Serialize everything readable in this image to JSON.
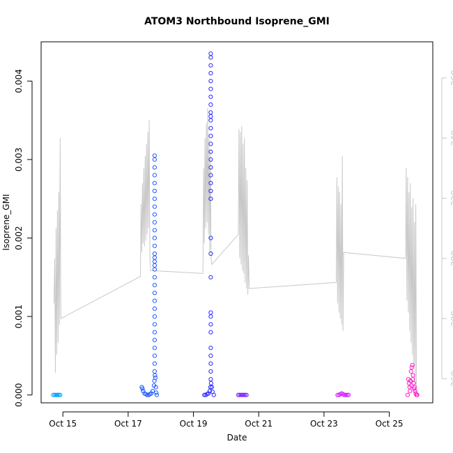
{
  "chart_data": {
    "type": "scatter",
    "title": "ATOM3 Northbound Isoprene_GMI",
    "xlabel": "Date",
    "ylabel": "Isoprene_GMI",
    "xlim": [
      "2017-10-14T08:00",
      "2017-10-26T08:00"
    ],
    "ylim": [
      -0.0001,
      0.0045
    ],
    "y2lim": [
      252,
      372
    ],
    "x_ticks": [
      {
        "date": "2017-10-15",
        "label": "Oct 15"
      },
      {
        "date": "2017-10-17",
        "label": "Oct 17"
      },
      {
        "date": "2017-10-19",
        "label": "Oct 19"
      },
      {
        "date": "2017-10-21",
        "label": "Oct 21"
      },
      {
        "date": "2017-10-23",
        "label": "Oct 23"
      },
      {
        "date": "2017-10-25",
        "label": "Oct 25"
      }
    ],
    "y_ticks": [
      {
        "value": 0,
        "label": "0.000"
      },
      {
        "value": 0.001,
        "label": "0.001"
      },
      {
        "value": 0.002,
        "label": "0.002"
      },
      {
        "value": 0.003,
        "label": "0.003"
      },
      {
        "value": 0.004,
        "label": "0.004"
      }
    ],
    "y2_ticks": [
      {
        "value": 260,
        "label": "260"
      },
      {
        "value": 280,
        "label": "280"
      },
      {
        "value": 300,
        "label": "300"
      },
      {
        "value": 320,
        "label": "320"
      },
      {
        "value": 340,
        "label": "340"
      },
      {
        "value": 360,
        "label": "360"
      }
    ],
    "grid": false,
    "legend": "none",
    "series": [
      {
        "color": "#00A0FF",
        "points": [
          [
            "2017-10-14T17:00",
            0
          ],
          [
            "2017-10-14T18:00",
            0
          ],
          [
            "2017-10-14T19:00",
            0
          ],
          [
            "2017-10-14T20:00",
            0
          ],
          [
            "2017-10-14T21:00",
            0
          ],
          [
            "2017-10-14T22:00",
            0
          ]
        ]
      },
      {
        "color": "#1E5AFF",
        "points": [
          [
            "2017-10-17T10:00",
            0.0001
          ],
          [
            "2017-10-17T10:30",
            8e-05
          ],
          [
            "2017-10-17T11:00",
            5e-05
          ],
          [
            "2017-10-17T12:00",
            2e-05
          ],
          [
            "2017-10-17T13:00",
            1e-05
          ],
          [
            "2017-10-17T14:00",
            0
          ],
          [
            "2017-10-17T15:00",
            0
          ],
          [
            "2017-10-17T16:00",
            1e-05
          ],
          [
            "2017-10-17T17:00",
            2e-05
          ],
          [
            "2017-10-17T18:00",
            5e-05
          ],
          [
            "2017-10-17T19:00",
            0.00012
          ],
          [
            "2017-10-17T19:20",
            0.00018
          ],
          [
            "2017-10-17T19:40",
            0.00025
          ],
          [
            "2017-10-17T20:00",
            0.00022
          ],
          [
            "2017-10-17T20:20",
            0.0001
          ],
          [
            "2017-10-17T20:40",
            3e-05
          ],
          [
            "2017-10-17T21:00",
            0
          ],
          [
            "2017-10-17T19:30",
            0.0003
          ],
          [
            "2017-10-17T19:30",
            0.0004
          ],
          [
            "2017-10-17T19:30",
            0.0005
          ],
          [
            "2017-10-17T19:30",
            0.0006
          ],
          [
            "2017-10-17T19:30",
            0.0007
          ],
          [
            "2017-10-17T19:30",
            0.0008
          ],
          [
            "2017-10-17T19:30",
            0.0009
          ],
          [
            "2017-10-17T19:30",
            0.001
          ],
          [
            "2017-10-17T19:30",
            0.0011
          ],
          [
            "2017-10-17T19:30",
            0.0012
          ],
          [
            "2017-10-17T19:30",
            0.0013
          ],
          [
            "2017-10-17T19:30",
            0.0014
          ],
          [
            "2017-10-17T19:30",
            0.0015
          ],
          [
            "2017-10-17T19:30",
            0.0016
          ],
          [
            "2017-10-17T19:30",
            0.00165
          ],
          [
            "2017-10-17T19:30",
            0.0017
          ],
          [
            "2017-10-17T19:30",
            0.00175
          ],
          [
            "2017-10-17T19:30",
            0.0018
          ],
          [
            "2017-10-17T19:30",
            0.0019
          ],
          [
            "2017-10-17T19:30",
            0.002
          ],
          [
            "2017-10-17T19:30",
            0.0021
          ],
          [
            "2017-10-17T19:30",
            0.0022
          ],
          [
            "2017-10-17T19:30",
            0.0023
          ],
          [
            "2017-10-17T19:30",
            0.0024
          ],
          [
            "2017-10-17T19:30",
            0.0025
          ],
          [
            "2017-10-17T19:30",
            0.0026
          ],
          [
            "2017-10-17T19:30",
            0.0027
          ],
          [
            "2017-10-17T19:30",
            0.0028
          ],
          [
            "2017-10-17T19:30",
            0.0029
          ],
          [
            "2017-10-17T19:30",
            0.003
          ],
          [
            "2017-10-17T19:30",
            0.00305
          ]
        ]
      },
      {
        "color": "#2A2AFF",
        "points": [
          [
            "2017-10-19T08:00",
            0
          ],
          [
            "2017-10-19T09:00",
            0
          ],
          [
            "2017-10-19T10:00",
            1e-05
          ],
          [
            "2017-10-19T11:00",
            2e-05
          ],
          [
            "2017-10-19T12:00",
            5e-05
          ],
          [
            "2017-10-19T12:30",
            0.0001
          ],
          [
            "2017-10-19T13:00",
            0.00015
          ],
          [
            "2017-10-19T13:30",
            0.0001
          ],
          [
            "2017-10-19T14:00",
            4e-05
          ],
          [
            "2017-10-19T15:00",
            0
          ],
          [
            "2017-10-19T12:45",
            0.0002
          ],
          [
            "2017-10-19T12:45",
            0.0003
          ],
          [
            "2017-10-19T12:45",
            0.0004
          ],
          [
            "2017-10-19T12:45",
            0.0005
          ],
          [
            "2017-10-19T12:45",
            0.0006
          ],
          [
            "2017-10-19T12:45",
            0.0008
          ],
          [
            "2017-10-19T12:45",
            0.0009
          ],
          [
            "2017-10-19T12:45",
            0.001
          ],
          [
            "2017-10-19T12:45",
            0.00105
          ],
          [
            "2017-10-19T12:45",
            0.0015
          ],
          [
            "2017-10-19T12:45",
            0.0018
          ],
          [
            "2017-10-19T12:45",
            0.002
          ],
          [
            "2017-10-19T12:45",
            0.0025
          ],
          [
            "2017-10-19T12:45",
            0.0026
          ],
          [
            "2017-10-19T12:45",
            0.0027
          ],
          [
            "2017-10-19T12:45",
            0.0028
          ],
          [
            "2017-10-19T12:45",
            0.0029
          ],
          [
            "2017-10-19T12:45",
            0.003
          ],
          [
            "2017-10-19T12:45",
            0.0031
          ],
          [
            "2017-10-19T12:45",
            0.0032
          ],
          [
            "2017-10-19T12:45",
            0.0033
          ],
          [
            "2017-10-19T12:45",
            0.0034
          ],
          [
            "2017-10-19T12:45",
            0.0035
          ],
          [
            "2017-10-19T12:45",
            0.00355
          ],
          [
            "2017-10-19T12:45",
            0.0036
          ],
          [
            "2017-10-19T12:45",
            0.0037
          ],
          [
            "2017-10-19T12:45",
            0.0038
          ],
          [
            "2017-10-19T12:45",
            0.0039
          ],
          [
            "2017-10-19T12:45",
            0.004
          ],
          [
            "2017-10-19T12:45",
            0.0041
          ],
          [
            "2017-10-19T12:45",
            0.0042
          ],
          [
            "2017-10-19T12:45",
            0.0043
          ],
          [
            "2017-10-19T12:45",
            0.00435
          ]
        ]
      },
      {
        "color": "#7A1EFF",
        "points": [
          [
            "2017-10-20T09:00",
            0
          ],
          [
            "2017-10-20T10:00",
            0
          ],
          [
            "2017-10-20T11:00",
            0
          ],
          [
            "2017-10-20T12:00",
            0
          ],
          [
            "2017-10-20T13:00",
            0
          ],
          [
            "2017-10-20T14:00",
            0
          ],
          [
            "2017-10-20T15:00",
            0
          ]
        ]
      },
      {
        "color": "#D21EFF",
        "points": [
          [
            "2017-10-23T10:00",
            0
          ],
          [
            "2017-10-23T11:00",
            0
          ],
          [
            "2017-10-23T12:00",
            1e-05
          ],
          [
            "2017-10-23T13:00",
            2e-05
          ],
          [
            "2017-10-23T14:00",
            1e-05
          ],
          [
            "2017-10-23T15:00",
            0
          ],
          [
            "2017-10-23T16:00",
            0
          ],
          [
            "2017-10-23T17:00",
            0
          ],
          [
            "2017-10-23T18:00",
            0
          ]
        ]
      },
      {
        "color": "#FF1EC8",
        "points": [
          [
            "2017-10-25T14:00",
            0.0002
          ],
          [
            "2017-10-25T14:30",
            0.00015
          ],
          [
            "2017-10-25T15:00",
            0.0001
          ],
          [
            "2017-10-25T15:30",
            0.00018
          ],
          [
            "2017-10-25T16:00",
            0.0003
          ],
          [
            "2017-10-25T16:30",
            0.00035
          ],
          [
            "2017-10-25T17:00",
            0.00038
          ],
          [
            "2017-10-25T17:30",
            0.00025
          ],
          [
            "2017-10-25T18:00",
            0.00015
          ],
          [
            "2017-10-25T18:30",
            0.0001
          ],
          [
            "2017-10-25T19:00",
            5e-05
          ],
          [
            "2017-10-25T19:30",
            2e-05
          ],
          [
            "2017-10-25T20:00",
            0
          ],
          [
            "2017-10-25T20:30",
            0
          ],
          [
            "2017-10-25T13:30",
            0
          ],
          [
            "2017-10-25T15:15",
            5e-05
          ],
          [
            "2017-10-25T16:15",
            0.00012
          ],
          [
            "2017-10-25T17:15",
            0.0002
          ],
          [
            "2017-10-25T18:15",
            8e-05
          ]
        ]
      }
    ],
    "line_series": {
      "axis": "right",
      "color": "#c8c8c8",
      "points": [
        [
          "2017-10-14T17:30",
          285
        ],
        [
          "2017-10-14T18:00",
          300
        ],
        [
          "2017-10-14T18:30",
          262
        ],
        [
          "2017-10-14T19:00",
          310
        ],
        [
          "2017-10-14T19:30",
          268
        ],
        [
          "2017-10-14T20:00",
          316
        ],
        [
          "2017-10-14T20:30",
          272
        ],
        [
          "2017-10-14T21:00",
          322
        ],
        [
          "2017-10-14T21:30",
          278
        ],
        [
          "2017-10-14T22:00",
          340
        ],
        [
          "2017-10-14T22:30",
          280
        ],
        [
          "2017-10-17T09:00",
          294
        ],
        [
          "2017-10-17T09:30",
          318
        ],
        [
          "2017-10-17T10:00",
          302
        ],
        [
          "2017-10-17T10:30",
          325
        ],
        [
          "2017-10-17T11:00",
          305
        ],
        [
          "2017-10-17T11:30",
          330
        ],
        [
          "2017-10-17T12:00",
          304
        ],
        [
          "2017-10-17T12:30",
          334
        ],
        [
          "2017-10-17T13:00",
          306
        ],
        [
          "2017-10-17T13:30",
          338
        ],
        [
          "2017-10-17T14:00",
          308
        ],
        [
          "2017-10-17T14:30",
          342
        ],
        [
          "2017-10-17T15:00",
          310
        ],
        [
          "2017-10-17T15:30",
          346
        ],
        [
          "2017-10-17T16:00",
          300
        ],
        [
          "2017-10-17T16:30",
          296
        ],
        [
          "2017-10-19T07:00",
          295
        ],
        [
          "2017-10-19T07:30",
          330
        ],
        [
          "2017-10-19T08:00",
          305
        ],
        [
          "2017-10-19T08:30",
          340
        ],
        [
          "2017-10-19T09:00",
          310
        ],
        [
          "2017-10-19T09:30",
          345
        ],
        [
          "2017-10-19T10:00",
          312
        ],
        [
          "2017-10-19T10:30",
          350
        ],
        [
          "2017-10-19T11:00",
          308
        ],
        [
          "2017-10-19T11:30",
          340
        ],
        [
          "2017-10-19T12:00",
          302
        ],
        [
          "2017-10-19T12:30",
          336
        ],
        [
          "2017-10-19T13:00",
          300
        ],
        [
          "2017-10-19T13:30",
          298
        ],
        [
          "2017-10-20T09:00",
          308
        ],
        [
          "2017-10-20T09:30",
          343
        ],
        [
          "2017-10-20T10:00",
          300
        ],
        [
          "2017-10-20T10:30",
          342
        ],
        [
          "2017-10-20T11:00",
          298
        ],
        [
          "2017-10-20T11:30",
          344
        ],
        [
          "2017-10-20T12:00",
          296
        ],
        [
          "2017-10-20T12:30",
          338
        ],
        [
          "2017-10-20T13:00",
          295
        ],
        [
          "2017-10-20T13:30",
          340
        ],
        [
          "2017-10-20T14:00",
          292
        ],
        [
          "2017-10-20T14:30",
          330
        ],
        [
          "2017-10-20T15:00",
          290
        ],
        [
          "2017-10-20T15:30",
          326
        ],
        [
          "2017-10-20T16:00",
          288
        ],
        [
          "2017-10-20T16:30",
          301
        ],
        [
          "2017-10-20T17:00",
          290
        ],
        [
          "2017-10-23T09:00",
          292
        ],
        [
          "2017-10-23T09:30",
          327
        ],
        [
          "2017-10-23T10:00",
          285
        ],
        [
          "2017-10-23T10:30",
          324
        ],
        [
          "2017-10-23T11:00",
          282
        ],
        [
          "2017-10-23T11:30",
          322
        ],
        [
          "2017-10-23T12:00",
          280
        ],
        [
          "2017-10-23T12:30",
          318
        ],
        [
          "2017-10-23T13:00",
          278
        ],
        [
          "2017-10-23T13:30",
          334
        ],
        [
          "2017-10-23T14:00",
          276
        ],
        [
          "2017-10-23T14:30",
          302
        ],
        [
          "2017-10-25T12:00",
          300
        ],
        [
          "2017-10-25T12:30",
          330
        ],
        [
          "2017-10-25T13:00",
          286
        ],
        [
          "2017-10-25T13:30",
          327
        ],
        [
          "2017-10-25T14:00",
          282
        ],
        [
          "2017-10-25T14:30",
          322
        ],
        [
          "2017-10-25T15:00",
          276
        ],
        [
          "2017-10-25T15:30",
          325
        ],
        [
          "2017-10-25T16:00",
          272
        ],
        [
          "2017-10-25T16:30",
          317
        ],
        [
          "2017-10-25T17:00",
          268
        ],
        [
          "2017-10-25T17:30",
          320
        ],
        [
          "2017-10-25T18:00",
          264
        ],
        [
          "2017-10-25T18:30",
          312
        ],
        [
          "2017-10-25T19:00",
          258
        ],
        [
          "2017-10-25T19:30",
          318
        ],
        [
          "2017-10-25T20:00",
          256
        ]
      ]
    }
  }
}
